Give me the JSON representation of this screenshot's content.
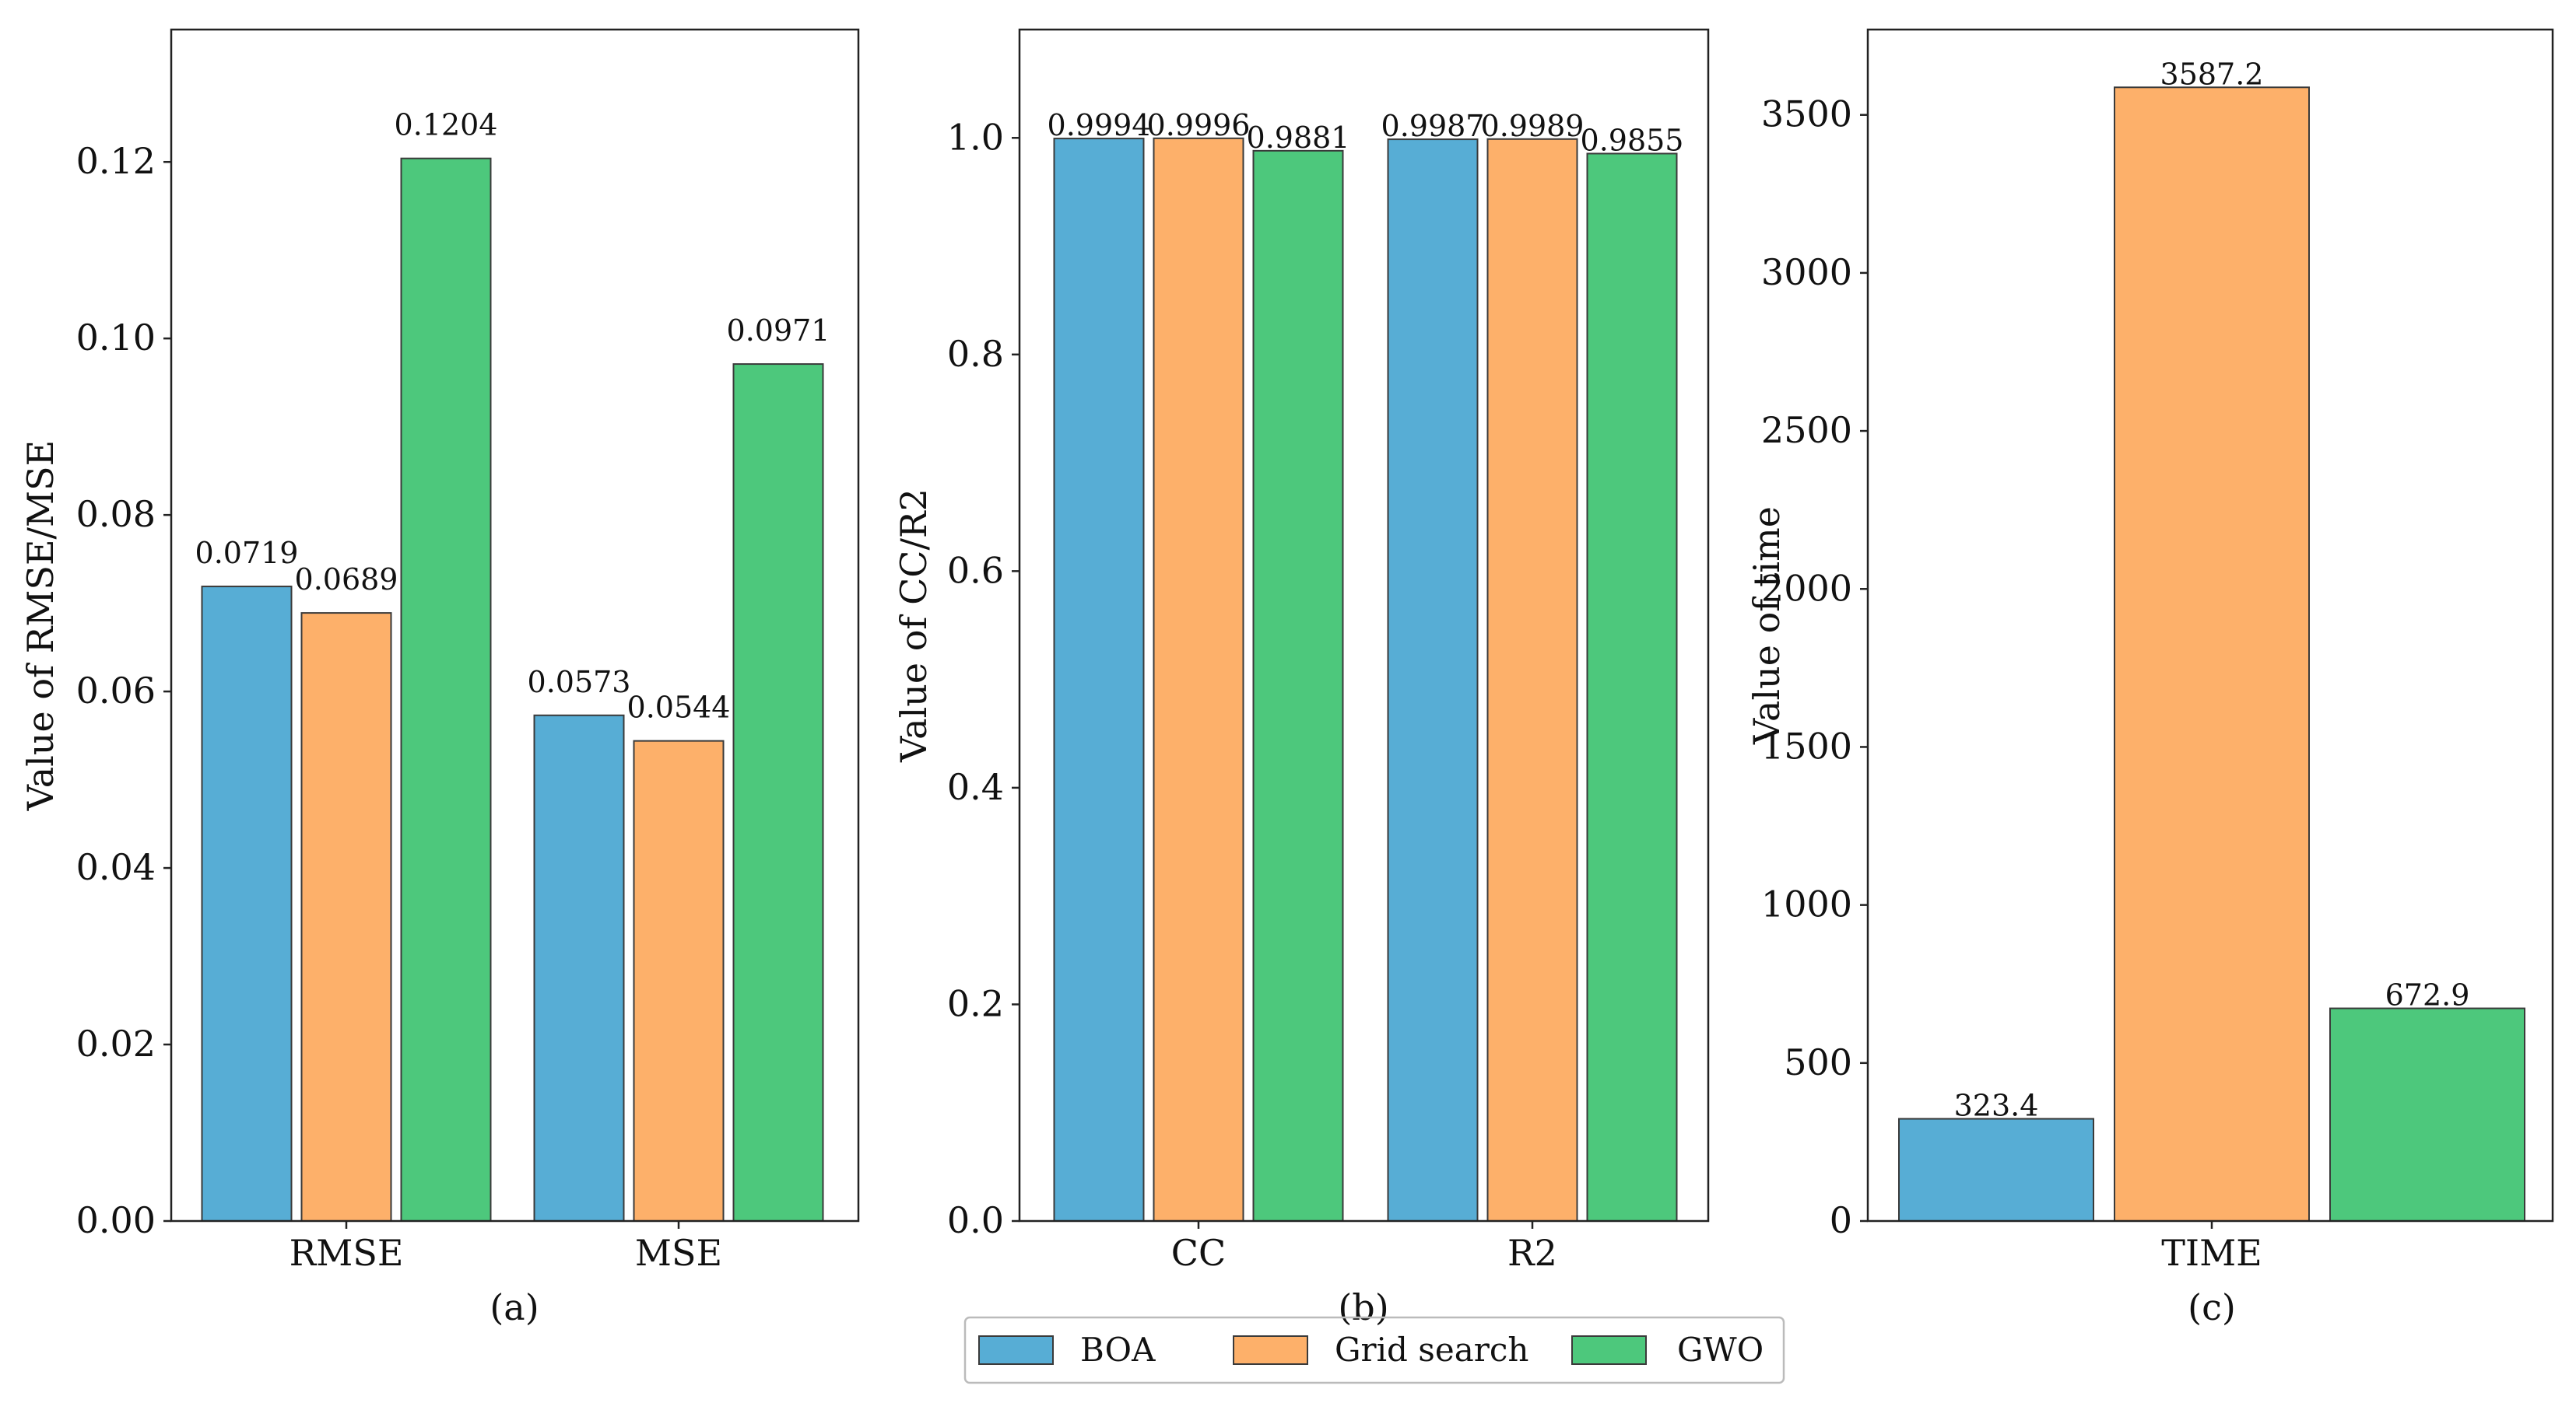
{
  "colors": {
    "BOA": "#57ADD5",
    "Grid search": "#FDB06A",
    "GWO": "#4DC87C",
    "edge": "#3a3a3a"
  },
  "legend": {
    "placement": "bottom-center",
    "entries": [
      "BOA",
      "Grid search",
      "GWO"
    ]
  },
  "chart_data": [
    {
      "type": "bar",
      "panel": "(a)",
      "categories": [
        "RMSE",
        "MSE"
      ],
      "series": [
        {
          "name": "BOA",
          "values": [
            0.0719,
            0.0573
          ]
        },
        {
          "name": "Grid search",
          "values": [
            0.0689,
            0.0544
          ]
        },
        {
          "name": "GWO",
          "values": [
            0.1204,
            0.0971
          ]
        }
      ],
      "data_labels": [
        [
          "0.0719",
          "0.0573"
        ],
        [
          "0.0689",
          "0.0544"
        ],
        [
          "0.1204",
          "0.0971"
        ]
      ],
      "xlabel": "",
      "ylabel": "Value of RMSE/MSE",
      "ylim": [
        0,
        0.135
      ],
      "yticks": [
        0,
        0.02,
        0.04,
        0.06,
        0.08,
        0.1,
        0.12
      ],
      "ytick_labels": [
        "0.00",
        "0.02",
        "0.04",
        "0.06",
        "0.08",
        "0.10",
        "0.12"
      ],
      "label_style": "above",
      "grid": false
    },
    {
      "type": "bar",
      "panel": "(b)",
      "categories": [
        "CC",
        "R2"
      ],
      "series": [
        {
          "name": "BOA",
          "values": [
            0.9994,
            0.9987
          ]
        },
        {
          "name": "Grid search",
          "values": [
            0.9996,
            0.9989
          ]
        },
        {
          "name": "GWO",
          "values": [
            0.9881,
            0.9855
          ]
        }
      ],
      "data_labels": [
        [
          "0.9994",
          "0.9987"
        ],
        [
          "0.9996",
          "0.9989"
        ],
        [
          "0.9881",
          "0.9855"
        ]
      ],
      "xlabel": "",
      "ylabel": "Value of CC/R2",
      "ylim": [
        0,
        1.1
      ],
      "yticks": [
        0,
        0.2,
        0.4,
        0.6,
        0.8,
        1.0
      ],
      "ytick_labels": [
        "0.0",
        "0.2",
        "0.4",
        "0.6",
        "0.8",
        "1.0"
      ],
      "label_style": "top",
      "grid": false
    },
    {
      "type": "bar",
      "panel": "(c)",
      "categories": [
        "TIME"
      ],
      "series": [
        {
          "name": "BOA",
          "values": [
            323.4
          ]
        },
        {
          "name": "Grid search",
          "values": [
            3587.2
          ]
        },
        {
          "name": "GWO",
          "values": [
            672.9
          ]
        }
      ],
      "data_labels": [
        [
          "323.4"
        ],
        [
          "3587.2"
        ],
        [
          "672.9"
        ]
      ],
      "xlabel": "",
      "ylabel": "Value of time",
      "ylim": [
        0,
        3770
      ],
      "yticks": [
        0,
        500,
        1000,
        1500,
        2000,
        2500,
        3000,
        3500
      ],
      "ytick_labels": [
        "0",
        "500",
        "1000",
        "1500",
        "2000",
        "2500",
        "3000",
        "3500"
      ],
      "label_style": "top",
      "grid": false
    }
  ]
}
